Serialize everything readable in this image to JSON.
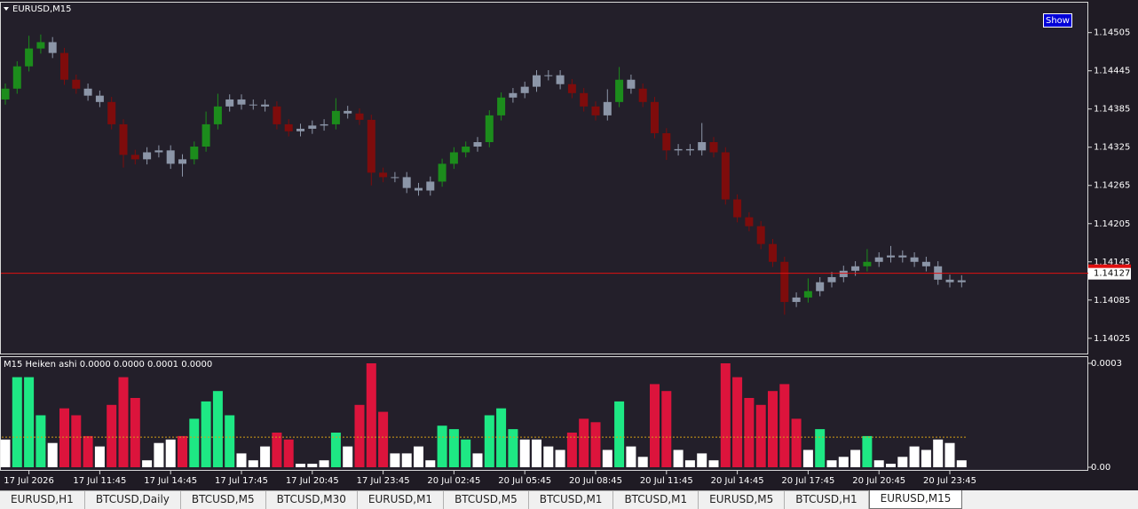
{
  "chart_data": [
    {
      "type": "candlestick",
      "title": "EURUSD,M15",
      "button": "Show",
      "open": [
        1.144,
        1.14417,
        1.14452,
        1.1448,
        1.1449,
        1.14473,
        1.14431,
        1.14417,
        1.14406,
        1.14396,
        1.14361,
        1.14313,
        1.14306,
        1.14317,
        1.1432,
        1.14299,
        1.14306,
        1.14326,
        1.14361,
        1.14389,
        1.144,
        1.14392,
        1.14392,
        1.14389,
        1.14361,
        1.1435,
        1.14354,
        1.14359,
        1.14361,
        1.14382,
        1.14378,
        1.14368,
        1.14285,
        1.14278,
        1.14278,
        1.14261,
        1.14257,
        1.14271,
        1.14299,
        1.14317,
        1.14326,
        1.14333,
        1.14375,
        1.14403,
        1.1441,
        1.1442,
        1.14438,
        1.14438,
        1.14424,
        1.1441,
        1.14389,
        1.14375,
        1.14396,
        1.14431,
        1.14417,
        1.14396,
        1.14347,
        1.1432,
        1.14322,
        1.1432,
        1.14333,
        1.14317,
        1.14243,
        1.14215,
        1.14201,
        1.14173,
        1.14145,
        1.14082,
        1.14089,
        1.14099,
        1.14113,
        1.14121,
        1.14131,
        1.14138,
        1.14145,
        1.14152,
        1.14155,
        1.14152,
        1.14145,
        1.14138,
        1.14117,
        1.14113
      ],
      "high": [
        1.14425,
        1.1446,
        1.145,
        1.14502,
        1.14498,
        1.14481,
        1.14439,
        1.14425,
        1.14414,
        1.14404,
        1.14369,
        1.14321,
        1.14325,
        1.14328,
        1.14328,
        1.14314,
        1.14334,
        1.14381,
        1.14409,
        1.14408,
        1.14408,
        1.144,
        1.144,
        1.14397,
        1.14369,
        1.14362,
        1.14367,
        1.14369,
        1.14402,
        1.1439,
        1.14386,
        1.14376,
        1.14293,
        1.14286,
        1.14286,
        1.14269,
        1.14279,
        1.14307,
        1.14325,
        1.14334,
        1.14341,
        1.14383,
        1.14411,
        1.14418,
        1.14428,
        1.14446,
        1.14446,
        1.14446,
        1.14432,
        1.14418,
        1.14397,
        1.14416,
        1.14451,
        1.14439,
        1.14425,
        1.14404,
        1.14355,
        1.1433,
        1.1433,
        1.14363,
        1.14341,
        1.14325,
        1.14251,
        1.14223,
        1.14209,
        1.14181,
        1.14153,
        1.14097,
        1.14119,
        1.14121,
        1.14129,
        1.14139,
        1.14146,
        1.14165,
        1.1416,
        1.1417,
        1.14163,
        1.1416,
        1.14153,
        1.14146,
        1.14125,
        1.14124
      ],
      "low": [
        1.14392,
        1.14409,
        1.14444,
        1.14472,
        1.14465,
        1.14423,
        1.14409,
        1.14398,
        1.14388,
        1.14353,
        1.14293,
        1.14298,
        1.14298,
        1.14309,
        1.14291,
        1.14279,
        1.14298,
        1.14318,
        1.14353,
        1.14381,
        1.14384,
        1.14384,
        1.14381,
        1.14353,
        1.14342,
        1.14342,
        1.14346,
        1.14351,
        1.14353,
        1.1437,
        1.1436,
        1.14265,
        1.1427,
        1.1427,
        1.14253,
        1.14249,
        1.14249,
        1.14263,
        1.14291,
        1.14309,
        1.14318,
        1.14325,
        1.14367,
        1.14395,
        1.14402,
        1.14412,
        1.1443,
        1.14416,
        1.14402,
        1.14381,
        1.14367,
        1.14367,
        1.14388,
        1.14409,
        1.14388,
        1.14339,
        1.14305,
        1.14312,
        1.14312,
        1.14312,
        1.14309,
        1.14235,
        1.14207,
        1.14193,
        1.14165,
        1.14137,
        1.14062,
        1.14074,
        1.14081,
        1.14091,
        1.14105,
        1.14113,
        1.14123,
        1.1413,
        1.14137,
        1.14144,
        1.14144,
        1.14137,
        1.1413,
        1.14109,
        1.14105,
        1.14105
      ],
      "close": [
        1.14417,
        1.14452,
        1.1448,
        1.1449,
        1.14473,
        1.14431,
        1.14417,
        1.14406,
        1.14396,
        1.14361,
        1.14313,
        1.14306,
        1.14317,
        1.1432,
        1.14299,
        1.14306,
        1.14326,
        1.14361,
        1.14389,
        1.144,
        1.14392,
        1.14392,
        1.14389,
        1.14361,
        1.1435,
        1.14354,
        1.14359,
        1.14361,
        1.14382,
        1.14378,
        1.14368,
        1.14285,
        1.14278,
        1.14278,
        1.14261,
        1.14257,
        1.14271,
        1.14299,
        1.14317,
        1.14326,
        1.14333,
        1.14375,
        1.14403,
        1.1441,
        1.1442,
        1.14438,
        1.14438,
        1.14424,
        1.1441,
        1.14389,
        1.14375,
        1.14396,
        1.14431,
        1.14417,
        1.14396,
        1.14347,
        1.1432,
        1.14322,
        1.1432,
        1.14333,
        1.14317,
        1.14243,
        1.14215,
        1.14201,
        1.14173,
        1.14145,
        1.14082,
        1.14089,
        1.14099,
        1.14113,
        1.14121,
        1.14131,
        1.14138,
        1.14145,
        1.14152,
        1.14155,
        1.14152,
        1.14145,
        1.14138,
        1.14117,
        1.14113,
        1.14116
      ],
      "colors": [
        "#1c8c1c",
        "#1c8c1c",
        "#1c8c1c",
        "#1c8c1c",
        "#8c96a8",
        "#7e0c0c",
        "#7e0c0c",
        "#8c96a8",
        "#8c96a8",
        "#7e0c0c",
        "#7e0c0c",
        "#7e0c0c",
        "#8c96a8",
        "#8c96a8",
        "#8c96a8",
        "#8c96a8",
        "#1c8c1c",
        "#1c8c1c",
        "#1c8c1c",
        "#8c96a8",
        "#8c96a8",
        "#8c96a8",
        "#8c96a8",
        "#7e0c0c",
        "#7e0c0c",
        "#8c96a8",
        "#8c96a8",
        "#8c96a8",
        "#1c8c1c",
        "#8c96a8",
        "#7e0c0c",
        "#7e0c0c",
        "#7e0c0c",
        "#8c96a8",
        "#8c96a8",
        "#8c96a8",
        "#8c96a8",
        "#1c8c1c",
        "#1c8c1c",
        "#1c8c1c",
        "#8c96a8",
        "#1c8c1c",
        "#1c8c1c",
        "#8c96a8",
        "#8c96a8",
        "#8c96a8",
        "#8c96a8",
        "#8c96a8",
        "#7e0c0c",
        "#7e0c0c",
        "#7e0c0c",
        "#8c96a8",
        "#1c8c1c",
        "#8c96a8",
        "#7e0c0c",
        "#7e0c0c",
        "#7e0c0c",
        "#8c96a8",
        "#8c96a8",
        "#8c96a8",
        "#7e0c0c",
        "#7e0c0c",
        "#7e0c0c",
        "#7e0c0c",
        "#7e0c0c",
        "#7e0c0c",
        "#7e0c0c",
        "#8c96a8",
        "#1c8c1c",
        "#8c96a8",
        "#8c96a8",
        "#8c96a8",
        "#8c96a8",
        "#1c8c1c",
        "#8c96a8",
        "#8c96a8",
        "#8c96a8",
        "#8c96a8",
        "#8c96a8",
        "#8c96a8",
        "#8c96a8",
        "#8c96a8"
      ],
      "ylim": [
        1.14001,
        1.14552
      ],
      "yticks": [
        1.14505,
        1.14445,
        1.14385,
        1.14325,
        1.14265,
        1.14205,
        1.14145,
        1.14085,
        1.14025
      ],
      "current_price": 1.14127,
      "current_price_color": "#e01010",
      "time_labels": [
        "17 Jul 2026",
        "17 Jul 11:45",
        "17 Jul 14:45",
        "17 Jul 17:45",
        "17 Jul 20:45",
        "17 Jul 23:45",
        "20 Jul 02:45",
        "20 Jul 05:45",
        "20 Jul 08:45",
        "20 Jul 11:45",
        "20 Jul 14:45",
        "20 Jul 17:45",
        "20 Jul 20:45",
        "20 Jul 23:45"
      ]
    },
    {
      "type": "bar",
      "title": "M15 Heiken ashi  0.0000 0.0000 0.0001 0.0000",
      "values": [
        8e-05,
        0.00026,
        0.00026,
        0.00015,
        7e-05,
        0.00017,
        0.00015,
        9e-05,
        6e-05,
        0.00018,
        0.00026,
        0.0002,
        2e-05,
        7e-05,
        8e-05,
        9e-05,
        0.00014,
        0.00019,
        0.00022,
        0.00015,
        4e-05,
        2e-05,
        6e-05,
        0.0001,
        8e-05,
        1e-05,
        1e-05,
        2e-05,
        0.0001,
        6e-05,
        0.00018,
        0.0003,
        0.00016,
        4e-05,
        4e-05,
        6e-05,
        2e-05,
        0.00012,
        0.00011,
        8e-05,
        4e-05,
        0.00015,
        0.00017,
        0.00011,
        8e-05,
        8e-05,
        6e-05,
        5e-05,
        0.0001,
        0.00014,
        0.00013,
        5e-05,
        0.00019,
        6e-05,
        3e-05,
        0.00024,
        0.00022,
        5e-05,
        2e-05,
        4e-05,
        2e-05,
        0.0003,
        0.00026,
        0.0002,
        0.00018,
        0.00022,
        0.00024,
        0.00014,
        5e-05,
        0.00011,
        2e-05,
        3e-05,
        5e-05,
        9e-05,
        2e-05,
        1e-05,
        3e-05,
        6e-05,
        5e-05,
        8e-05,
        7e-05,
        2e-05
      ],
      "colors": [
        "#ffffff",
        "#1ee884",
        "#1ee884",
        "#1ee884",
        "#ffffff",
        "#dc143c",
        "#dc143c",
        "#dc143c",
        "#ffffff",
        "#dc143c",
        "#dc143c",
        "#dc143c",
        "#ffffff",
        "#ffffff",
        "#ffffff",
        "#dc143c",
        "#1ee884",
        "#1ee884",
        "#1ee884",
        "#1ee884",
        "#ffffff",
        "#ffffff",
        "#ffffff",
        "#dc143c",
        "#dc143c",
        "#ffffff",
        "#ffffff",
        "#ffffff",
        "#1ee884",
        "#ffffff",
        "#dc143c",
        "#dc143c",
        "#dc143c",
        "#ffffff",
        "#ffffff",
        "#ffffff",
        "#ffffff",
        "#1ee884",
        "#1ee884",
        "#1ee884",
        "#ffffff",
        "#1ee884",
        "#1ee884",
        "#1ee884",
        "#ffffff",
        "#ffffff",
        "#ffffff",
        "#ffffff",
        "#dc143c",
        "#dc143c",
        "#dc143c",
        "#ffffff",
        "#1ee884",
        "#ffffff",
        "#ffffff",
        "#dc143c",
        "#dc143c",
        "#ffffff",
        "#ffffff",
        "#ffffff",
        "#ffffff",
        "#dc143c",
        "#dc143c",
        "#dc143c",
        "#dc143c",
        "#dc143c",
        "#dc143c",
        "#dc143c",
        "#ffffff",
        "#1ee884",
        "#ffffff",
        "#ffffff",
        "#ffffff",
        "#1ee884",
        "#ffffff",
        "#ffffff",
        "#ffffff",
        "#ffffff",
        "#ffffff",
        "#ffffff",
        "#ffffff",
        "#ffffff"
      ],
      "ylim": [
        0,
        0.0003
      ],
      "yticks": [
        0.0003,
        {
          "value": 0,
          "label": "0.00"
        }
      ],
      "level": 8.7e-05,
      "level_color": "#d4a017"
    }
  ],
  "tabs": [
    "EURUSD,H1",
    "BTCUSD,Daily",
    "BTCUSD,M5",
    "BTCUSD,M30",
    "EURUSD,M1",
    "BTCUSD,M5",
    "BTCUSD,M1",
    "BTCUSD,M1",
    "EURUSD,M5",
    "BTCUSD,H1",
    "EURUSD,M15"
  ],
  "active_tab": 10
}
